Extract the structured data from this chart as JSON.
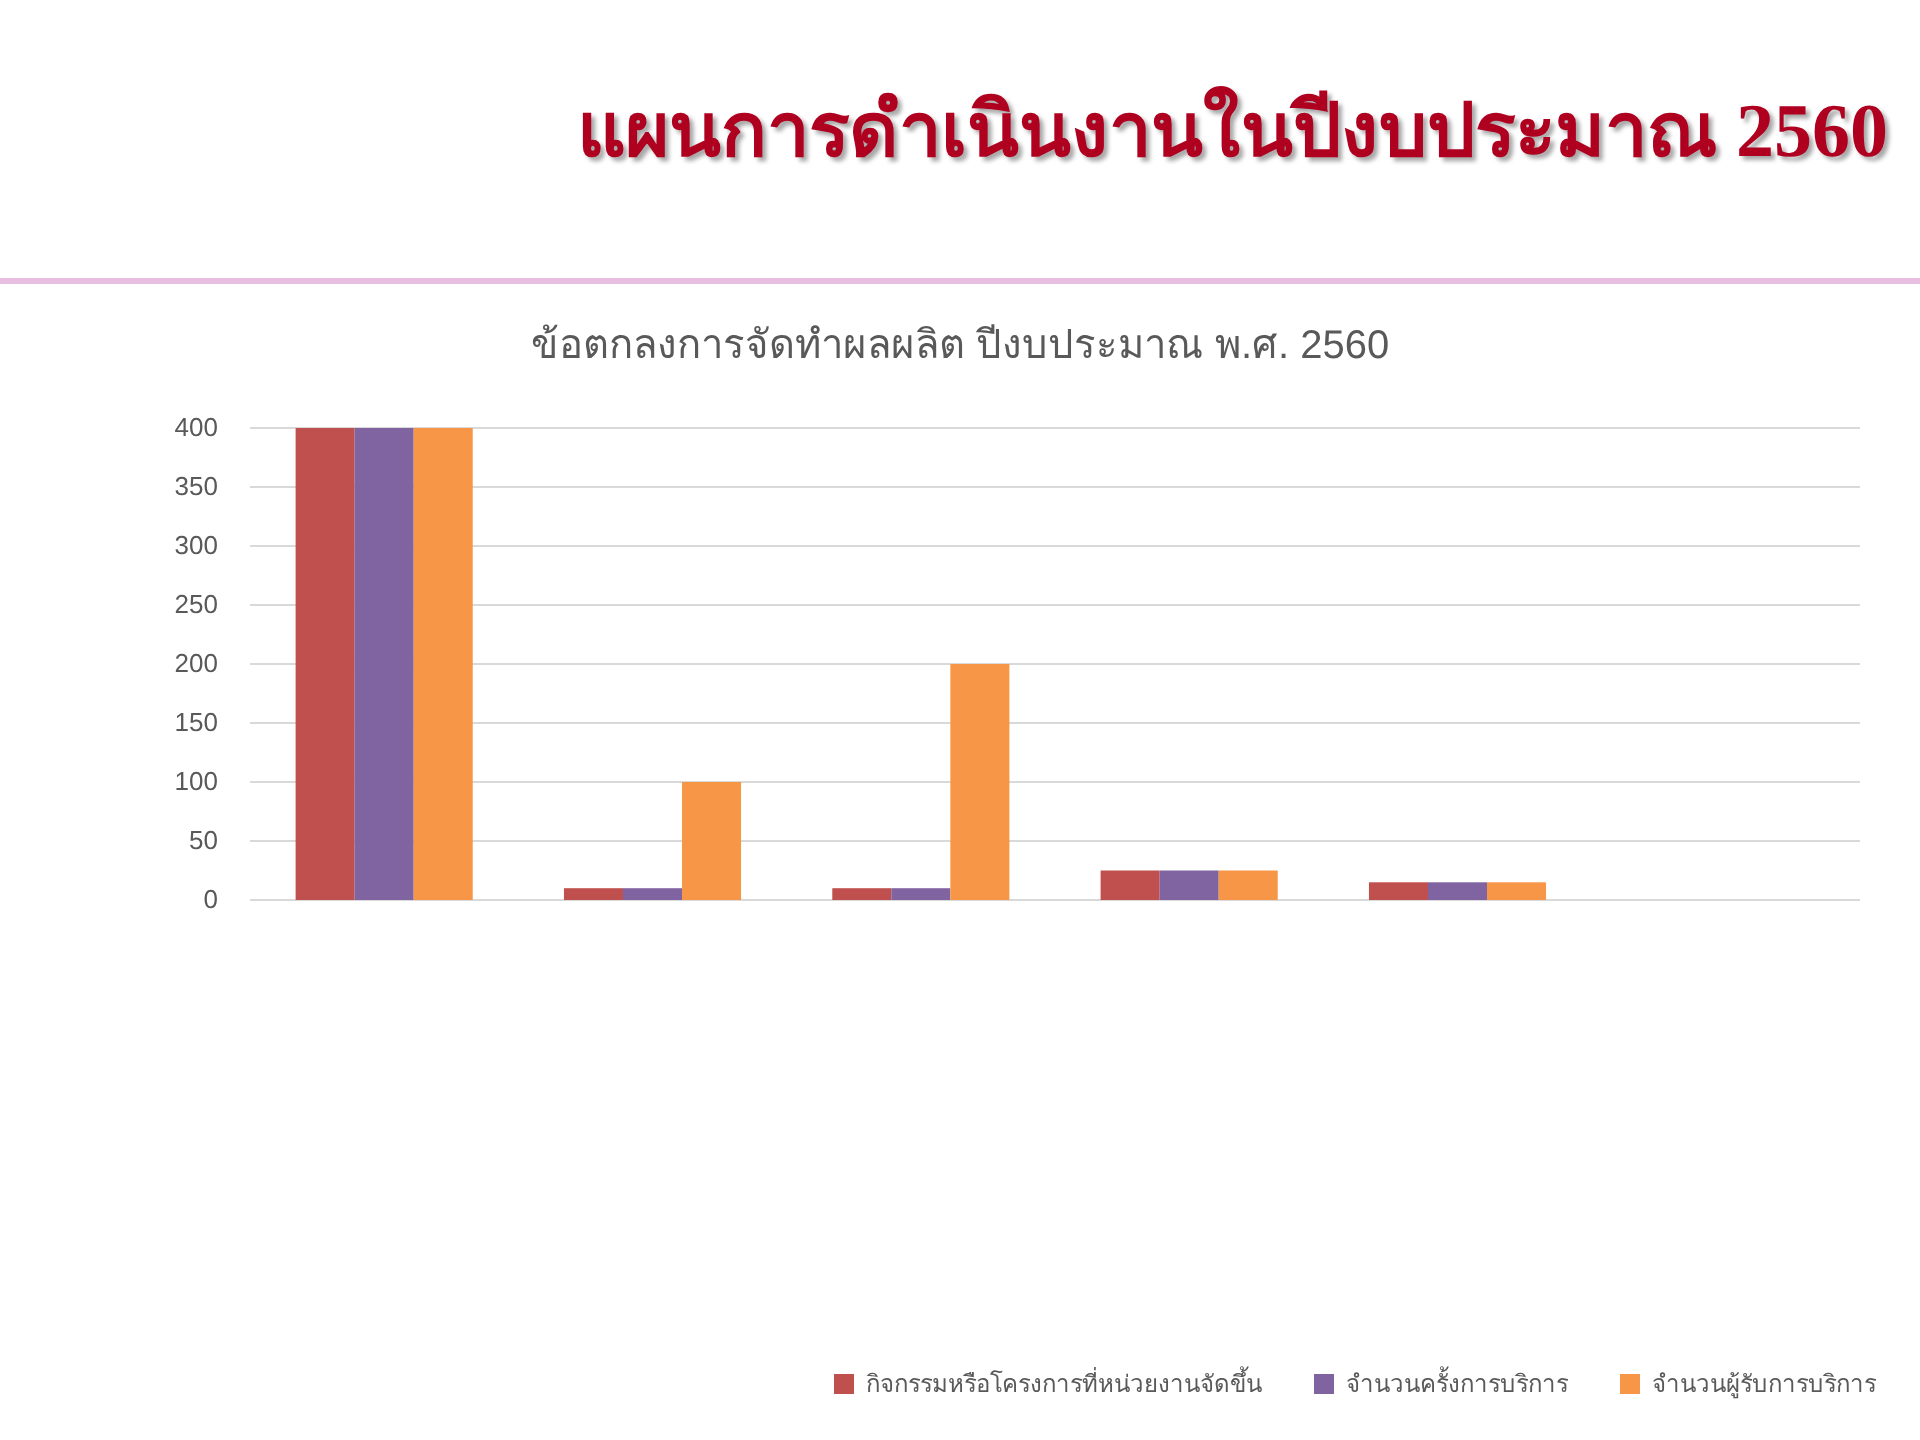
{
  "chart_data": {
    "type": "bar",
    "title": "แผนการดำเนินงานในปีงบประมาณ 2560",
    "subtitle": "ข้อตกลงการจัดทำผลผลิต ปีงบประมาณ พ.ศ. 2560",
    "categories": [
      null,
      null,
      null,
      null,
      null,
      null
    ],
    "series": [
      {
        "name": "กิจกรรมหรือโครงการที่หน่วยงานจัดขึ้น",
        "color": "#c0504d",
        "values": [
          400,
          10,
          10,
          25,
          15,
          null
        ]
      },
      {
        "name": "จำนวนครั้งการบริการ",
        "color": "#8064a2",
        "values": [
          400,
          10,
          10,
          25,
          15,
          null
        ]
      },
      {
        "name": "จำนวนผู้รับการบริการ",
        "color": "#f79646",
        "values": [
          400,
          100,
          200,
          25,
          15,
          null
        ]
      }
    ],
    "ylim": [
      0,
      400
    ],
    "yticks": [
      0,
      50,
      100,
      150,
      200,
      250,
      300,
      350,
      400
    ],
    "grid": "y",
    "legend": "bottom right"
  }
}
